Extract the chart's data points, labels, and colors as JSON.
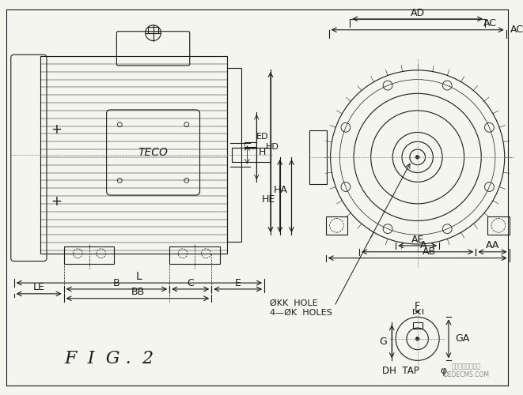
{
  "bg_color": "#f5f5f0",
  "line_color": "#1a1a1a",
  "title": "F  I  G .  2",
  "title_fontsize": 16,
  "label_fontsize": 9,
  "watermark": "织梦内容管理系统",
  "watermark2": "DEDECMS.COM"
}
